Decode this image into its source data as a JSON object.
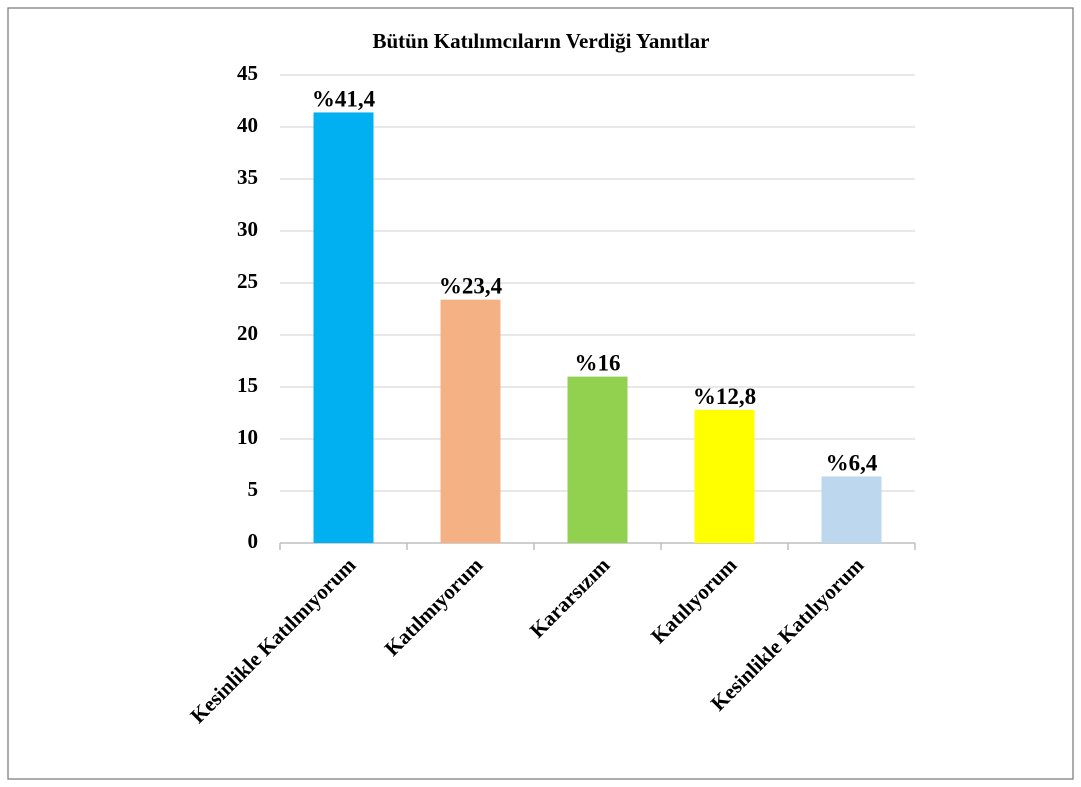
{
  "chart_data": {
    "type": "bar",
    "title": "Bütün Katılımcıların Verdiği Yanıtlar",
    "categories": [
      "Kesinlikle Katılmıyorum",
      "Katılmıyorum",
      "Kararsızım",
      "Katılıyorum",
      "Kesinlikle Katılıyorum"
    ],
    "values": [
      41.4,
      23.4,
      16,
      12.8,
      6.4
    ],
    "value_labels": [
      "%41,4",
      "%23,4",
      "%16",
      "%12,8",
      "%6,4"
    ],
    "colors": [
      "#00b0f0",
      "#f4b183",
      "#92d050",
      "#ffff00",
      "#bdd7ee"
    ],
    "ylim": [
      0,
      45
    ],
    "yticks": [
      0,
      5,
      10,
      15,
      20,
      25,
      30,
      35,
      40,
      45
    ],
    "grid": true
  }
}
